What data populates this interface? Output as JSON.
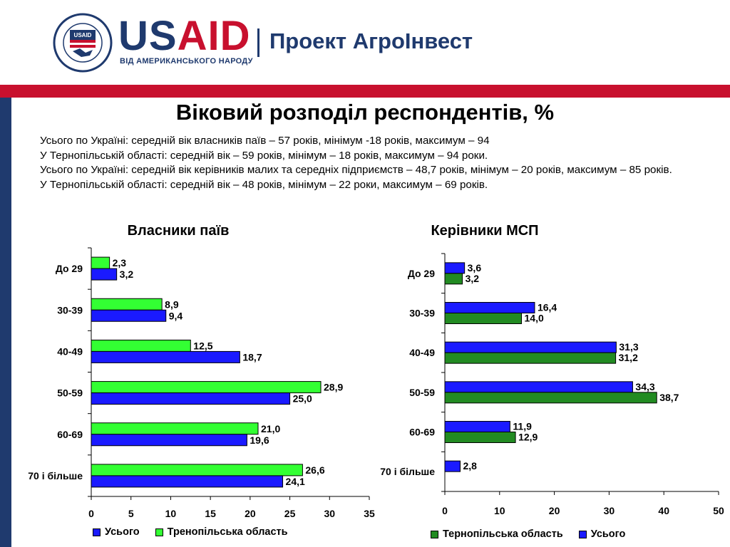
{
  "header": {
    "brand_us": "US",
    "brand_aid": "AID",
    "brand_tagline": "ВІД АМЕРИКАНСЬКОГО НАРОДУ",
    "project_title": "Проект АгроІнвест",
    "seal_text": "UNITED STATES AGENCY INTERNATIONAL DEVELOPMENT"
  },
  "title": "Віковий розподіл респондентів, %",
  "summary": [
    "Усього по Україні: середній вік власників паїв – 57 років, мінімум -18 років, максимум – 94",
    "У Тернопільській області: середній вік – 59 років,  мінімум – 18 років, максимум – 94 роки.",
    "Усього по Україні: середній вік керівників малих та середніх підприємств – 48,7 років, мінімум – 20 років, максимум – 85 років.",
    "У Тернопільській області: середній вік – 48 років,  мінімум – 22 роки, максимум – 69 років."
  ],
  "colors": {
    "blue_total": "#1a1aff",
    "bright_green": "#33ff33",
    "dark_green": "#228b22",
    "navy": "#1f3a6e",
    "red": "#c8102e"
  },
  "chart_data": [
    {
      "type": "bar",
      "orientation": "horizontal",
      "title": "Власники паїв",
      "categories": [
        "До 29",
        "30-39",
        "40-49",
        "50-59",
        "60-69",
        "70 і більше"
      ],
      "series": [
        {
          "name": "Тренопільська область",
          "color": "#33ff33",
          "values": [
            2.3,
            8.9,
            12.5,
            28.9,
            21.0,
            26.6
          ],
          "labels": [
            "2,3",
            "8,9",
            "12,5",
            "28,9",
            "21,0",
            "26,6"
          ]
        },
        {
          "name": "Усього",
          "color": "#1a1aff",
          "values": [
            3.2,
            9.4,
            18.7,
            25.0,
            19.6,
            24.1
          ],
          "labels": [
            "3,2",
            "9,4",
            "18,7",
            "25,0",
            "19,6",
            "24,1"
          ]
        }
      ],
      "legend_order": [
        "Усього",
        "Тренопільська область"
      ],
      "xlim": [
        0,
        35
      ],
      "xticks": [
        0,
        5,
        10,
        15,
        20,
        25,
        30,
        35
      ],
      "legend_position": "bottom"
    },
    {
      "type": "bar",
      "orientation": "horizontal",
      "title": "Керівники МСП",
      "categories": [
        "До 29",
        "30-39",
        "40-49",
        "50-59",
        "60-69",
        "70 і більше"
      ],
      "series": [
        {
          "name": "Усього",
          "color": "#1a1aff",
          "values": [
            3.6,
            16.4,
            31.3,
            34.3,
            11.9,
            2.8
          ],
          "labels": [
            "3,6",
            "16,4",
            "31,3",
            "34,3",
            "11,9",
            "2,8"
          ]
        },
        {
          "name": "Тернопільська область",
          "color": "#228b22",
          "values": [
            3.2,
            14.0,
            31.2,
            38.7,
            12.9,
            null
          ],
          "labels": [
            "3,2",
            "14,0",
            "31,2",
            "38,7",
            "12,9",
            ""
          ]
        }
      ],
      "legend_order": [
        "Тернопільська область",
        "Усього"
      ],
      "xlim": [
        0,
        50
      ],
      "xticks": [
        0,
        10,
        20,
        30,
        40,
        50
      ],
      "legend_position": "bottom"
    }
  ]
}
